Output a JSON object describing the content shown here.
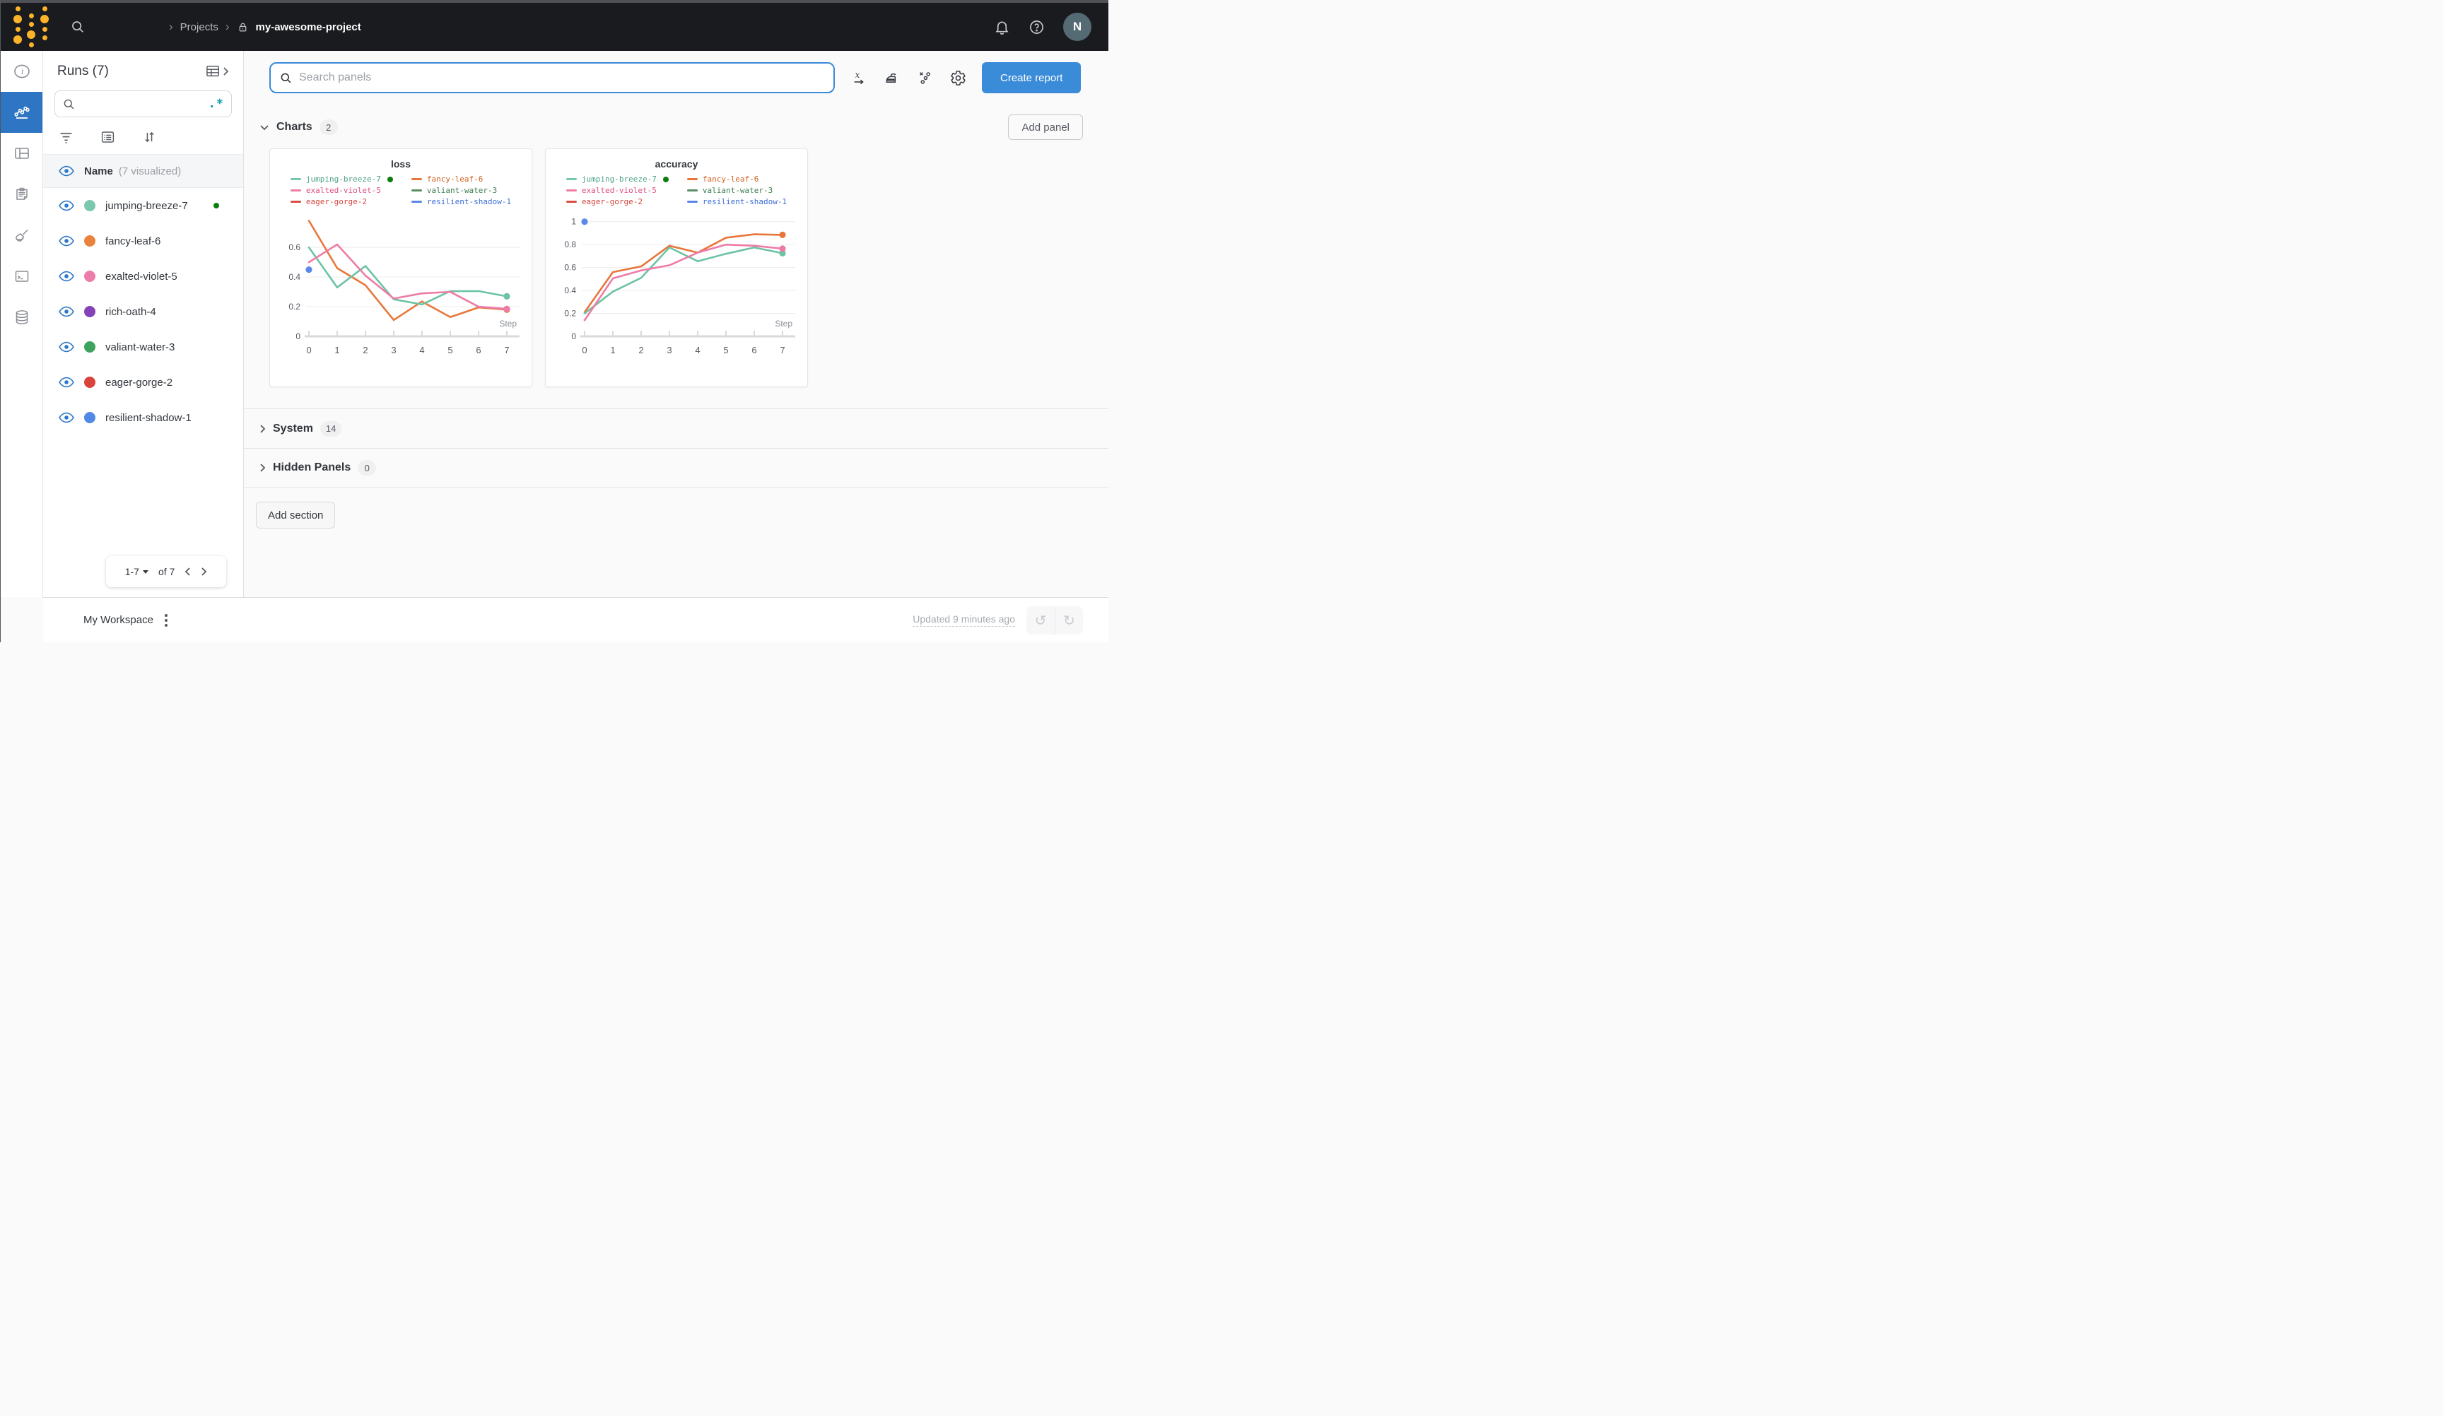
{
  "topbar": {
    "breadcrumb": {
      "section": "Projects",
      "project": "my-awesome-project"
    },
    "avatar_initial": "N"
  },
  "left_rail": {
    "icons": [
      "info",
      "line-chart",
      "panels-table",
      "notes-clipboard",
      "sweep-brush",
      "terminal-logs",
      "artifacts-database"
    ],
    "active": "line-chart",
    "active_color": "#2e75c4"
  },
  "runs_sidebar": {
    "title": "Runs (7)",
    "search_placeholder": "",
    "regex_toggle": ".*",
    "header": {
      "name_label": "Name",
      "visualized_label": "(7 visualized)"
    },
    "runs": [
      {
        "name": "jumping-breeze-7",
        "color": "#7cc8ae",
        "running": true
      },
      {
        "name": "fancy-leaf-6",
        "color": "#e8823c",
        "running": false
      },
      {
        "name": "exalted-violet-5",
        "color": "#ee7ca8",
        "running": false
      },
      {
        "name": "rich-oath-4",
        "color": "#8441b8",
        "running": false
      },
      {
        "name": "valiant-water-3",
        "color": "#3da35e",
        "running": false
      },
      {
        "name": "eager-gorge-2",
        "color": "#d9433c",
        "running": false
      },
      {
        "name": "resilient-shadow-1",
        "color": "#5189e4",
        "running": false
      }
    ],
    "pagination": {
      "range": "1-7",
      "of": "of 7"
    }
  },
  "toolbar": {
    "search_placeholder": "Search panels",
    "create_report_label": "Create report"
  },
  "sections": {
    "charts": {
      "label": "Charts",
      "count": "2",
      "add_panel_label": "Add panel"
    },
    "system": {
      "label": "System",
      "count": "14"
    },
    "hidden": {
      "label": "Hidden Panels",
      "count": "0"
    },
    "add_section_label": "Add section"
  },
  "footer": {
    "workspace_label": "My Workspace",
    "updated_text": "Updated 9 minutes ago"
  },
  "chart_data": [
    {
      "type": "line",
      "title": "loss",
      "xlabel": "Step",
      "xlim": [
        0,
        7.35
      ],
      "ylim": [
        0,
        0.82
      ],
      "xticks": [
        0,
        1,
        2,
        3,
        4,
        5,
        6,
        7
      ],
      "yticks": [
        0,
        0.2,
        0.4,
        0.6
      ],
      "grid": true,
      "legend_position": "top",
      "legend": [
        {
          "name": "jumping-breeze-7",
          "dash": "#76c7ab",
          "text": "#4ba38a",
          "running": true
        },
        {
          "name": "fancy-leaf-6",
          "dash": "#e8763a",
          "text": "#d4611f",
          "running": false
        },
        {
          "name": "exalted-violet-5",
          "dash": "#ef7ba7",
          "text": "#e05087",
          "running": false
        },
        {
          "name": "valiant-water-3",
          "dash": "#568f63",
          "text": "#3d7d4f",
          "running": false
        },
        {
          "name": "eager-gorge-2",
          "dash": "#d94f46",
          "text": "#d4453c",
          "running": false
        },
        {
          "name": "resilient-shadow-1",
          "dash": "#5b85e6",
          "text": "#3d6dd6",
          "running": false
        }
      ],
      "x": [
        0,
        1,
        2,
        3,
        4,
        5,
        6,
        7
      ],
      "series": [
        {
          "name": "fancy-leaf-6",
          "color": "#e8763a",
          "values": [
            0.78,
            0.46,
            0.345,
            0.11,
            0.235,
            0.13,
            0.195,
            0.18
          ],
          "end_dot": true
        },
        {
          "name": "jumping-breeze-7",
          "color": "#6cc3a3",
          "values": [
            0.6,
            0.33,
            0.475,
            0.25,
            0.215,
            0.305,
            0.305,
            0.27
          ],
          "end_dot": true
        },
        {
          "name": "exalted-violet-5",
          "color": "#ee7ba7",
          "values": [
            0.5,
            0.62,
            0.41,
            0.255,
            0.29,
            0.3,
            0.2,
            0.185
          ],
          "end_dot": true
        }
      ],
      "points": [
        {
          "name": "resilient-shadow-1",
          "color": "#5d87ea",
          "x": 0,
          "y": 0.45
        }
      ]
    },
    {
      "type": "line",
      "title": "accuracy",
      "xlabel": "Step",
      "xlim": [
        0,
        7.35
      ],
      "ylim": [
        0,
        1.06
      ],
      "xticks": [
        0,
        1,
        2,
        3,
        4,
        5,
        6,
        7
      ],
      "yticks": [
        0,
        0.2,
        0.4,
        0.6,
        0.8,
        1
      ],
      "grid": true,
      "legend_position": "top",
      "legend": [
        {
          "name": "jumping-breeze-7",
          "dash": "#76c7ab",
          "text": "#4ba38a",
          "running": true
        },
        {
          "name": "fancy-leaf-6",
          "dash": "#e8763a",
          "text": "#d4611f",
          "running": false
        },
        {
          "name": "exalted-violet-5",
          "dash": "#ef7ba7",
          "text": "#e05087",
          "running": false
        },
        {
          "name": "valiant-water-3",
          "dash": "#568f63",
          "text": "#3d7d4f",
          "running": false
        },
        {
          "name": "eager-gorge-2",
          "dash": "#d94f46",
          "text": "#d4453c",
          "running": false
        },
        {
          "name": "resilient-shadow-1",
          "dash": "#5b85e6",
          "text": "#3d6dd6",
          "running": false
        }
      ],
      "x": [
        0,
        1,
        2,
        3,
        4,
        5,
        6,
        7
      ],
      "series": [
        {
          "name": "fancy-leaf-6",
          "color": "#e8763a",
          "values": [
            0.21,
            0.56,
            0.61,
            0.79,
            0.73,
            0.86,
            0.89,
            0.885
          ],
          "end_dot": true
        },
        {
          "name": "jumping-breeze-7",
          "color": "#6cc3a3",
          "values": [
            0.2,
            0.39,
            0.51,
            0.775,
            0.655,
            0.72,
            0.775,
            0.725
          ],
          "end_dot": true
        },
        {
          "name": "exalted-violet-5",
          "color": "#ee7ba7",
          "values": [
            0.14,
            0.505,
            0.575,
            0.62,
            0.73,
            0.8,
            0.79,
            0.765
          ],
          "end_dot": true
        }
      ],
      "points": [
        {
          "name": "resilient-shadow-1",
          "color": "#5d87ea",
          "x": 0,
          "y": 1.0
        }
      ]
    }
  ]
}
